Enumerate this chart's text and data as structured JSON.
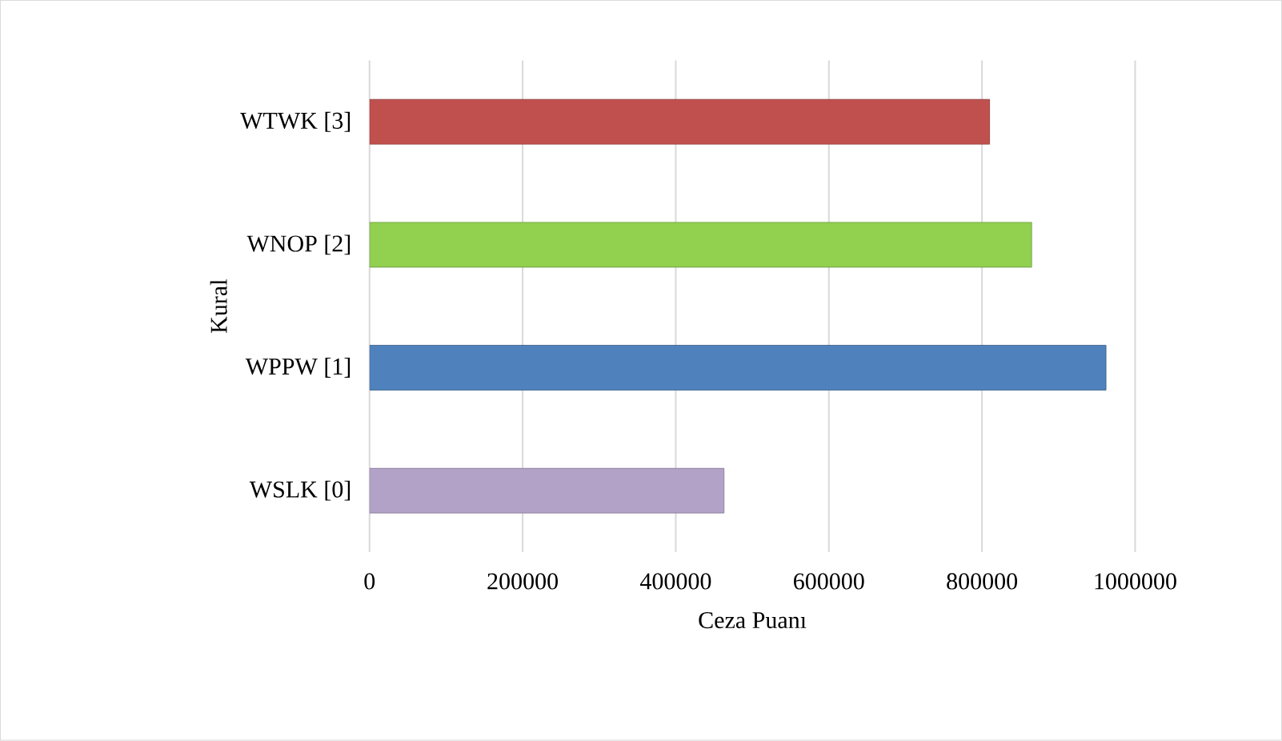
{
  "chart_data": {
    "type": "bar",
    "orientation": "horizontal",
    "xlabel": "Ceza Puanı",
    "ylabel": "Kural",
    "categories": [
      "WTWK [3]",
      "WNOP [2]",
      "WPPW [1]",
      "WSLK [0]"
    ],
    "values": [
      810000,
      865000,
      962000,
      463000
    ],
    "colors": [
      "#c0504d",
      "#92d050",
      "#4f81bd",
      "#b3a2c7"
    ],
    "xlim": [
      0,
      1000000
    ],
    "xticks": [
      0,
      200000,
      400000,
      600000,
      800000,
      1000000
    ],
    "grid": "x"
  }
}
